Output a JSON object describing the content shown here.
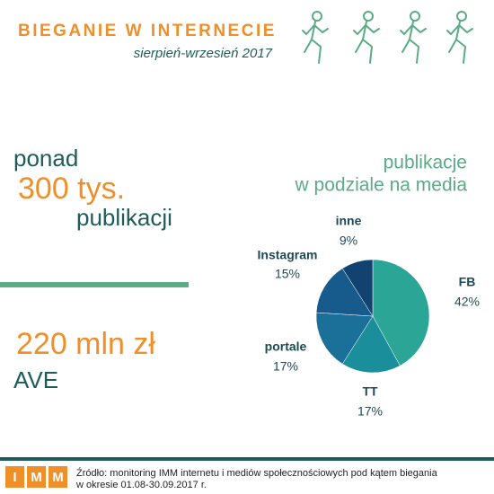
{
  "header": {
    "title": "BIEGANIE W INTERNECIE",
    "subtitle": "sierpień-wrzesień 2017"
  },
  "stats": {
    "prefix": "ponad",
    "publications": "300 tys.",
    "publications_label": "publikacji",
    "ave_value": "220 mln zł",
    "ave_label": "AVE"
  },
  "chart_data": {
    "type": "pie",
    "title": "publikacje",
    "subtitle": "w podziale na media",
    "categories": [
      "FB",
      "TT",
      "portale",
      "Instagram",
      "inne"
    ],
    "values": [
      42,
      17,
      17,
      15,
      9
    ],
    "value_labels": [
      "42%",
      "17%",
      "17%",
      "15%",
      "9%"
    ],
    "colors": [
      "#2aa596",
      "#1b8e9c",
      "#1a7099",
      "#175b8c",
      "#12426f"
    ]
  },
  "footer": {
    "logo": [
      "I",
      "M",
      "M"
    ],
    "source": [
      "Źródło: monitoring IMM internetu i mediów społecznościowych pod kątem biegania",
      "w okresie 01.08-30.09.2017 r."
    ]
  }
}
